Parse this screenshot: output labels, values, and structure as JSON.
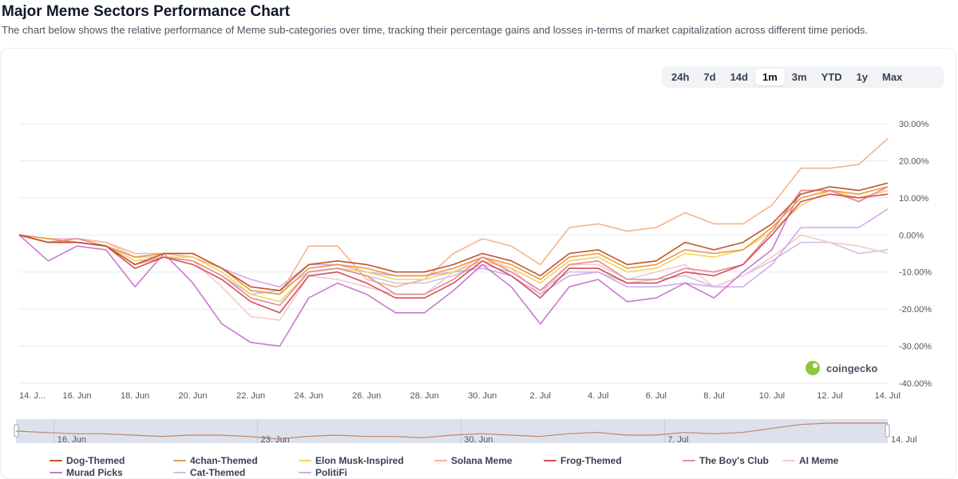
{
  "header": {
    "title": "Major Meme Sectors Performance Chart",
    "subtitle": "The chart below shows the relative performance of Meme sub-categories over time, tracking their percentage gains and losses in-terms of market capitalization across different time periods."
  },
  "range_selector": {
    "options": [
      "24h",
      "7d",
      "14d",
      "1m",
      "3m",
      "YTD",
      "1y",
      "Max"
    ],
    "selected": "1m"
  },
  "watermark": {
    "text": "coingecko",
    "icon": "coingecko-gecko-icon"
  },
  "colors": {
    "grid": "#e8eaef",
    "navigator_bg": "#dde1ec",
    "navigator_line": "#c2846a"
  },
  "chart_data": {
    "type": "line",
    "title": "Major Meme Sectors Performance Chart",
    "xlabel": "",
    "ylabel": "",
    "ylim": [
      -40,
      30
    ],
    "y_ticks": [
      "30.00%",
      "20.00%",
      "10.00%",
      "0.00%",
      "-10.00%",
      "-20.00%",
      "-30.00%",
      "-40.00%"
    ],
    "y_tick_values": [
      30,
      20,
      10,
      0,
      -10,
      -20,
      -30,
      -40
    ],
    "x_tick_labels": [
      "14. J...",
      "16. Jun",
      "18. Jun",
      "20. Jun",
      "22. Jun",
      "24. Jun",
      "26. Jun",
      "28. Jun",
      "30. Jun",
      "2. Jul",
      "4. Jul",
      "6. Jul",
      "8. Jul",
      "10. Jul",
      "12. Jul",
      "14. Jul"
    ],
    "x": [
      "14 Jun",
      "15 Jun",
      "16 Jun",
      "17 Jun",
      "18 Jun",
      "19 Jun",
      "20 Jun",
      "21 Jun",
      "22 Jun",
      "23 Jun",
      "24 Jun",
      "25 Jun",
      "26 Jun",
      "27 Jun",
      "28 Jun",
      "29 Jun",
      "30 Jun",
      "1 Jul",
      "2 Jul",
      "3 Jul",
      "4 Jul",
      "5 Jul",
      "6 Jul",
      "7 Jul",
      "8 Jul",
      "9 Jul",
      "10 Jul",
      "11 Jul",
      "12 Jul",
      "13 Jul",
      "14 Jul"
    ],
    "series": [
      {
        "name": "Dog-Themed",
        "color": "#c0542a",
        "values": [
          0,
          -2,
          -2,
          -3,
          -8,
          -5,
          -5,
          -9,
          -14,
          -15,
          -8,
          -7,
          -8,
          -10,
          -10,
          -8,
          -5,
          -7,
          -11,
          -5,
          -4,
          -8,
          -7,
          -2,
          -4,
          -2,
          3,
          11,
          13,
          12,
          14
        ]
      },
      {
        "name": "4chan-Themed",
        "color": "#e89a4a",
        "values": [
          0,
          -1,
          -2,
          -3,
          -6,
          -5,
          -5,
          -9,
          -15,
          -16,
          -9,
          -8,
          -9,
          -11,
          -11,
          -9,
          -6,
          -8,
          -12,
          -6,
          -5,
          -9,
          -8,
          -4,
          -5,
          -4,
          2,
          10,
          12,
          11,
          13
        ]
      },
      {
        "name": "Elon Musk-Inspired",
        "color": "#f2d55a",
        "values": [
          0,
          -1,
          -2,
          -3,
          -7,
          -6,
          -6,
          -10,
          -16,
          -18,
          -10,
          -9,
          -10,
          -12,
          -12,
          -10,
          -7,
          -9,
          -13,
          -7,
          -6,
          -10,
          -9,
          -5,
          -6,
          -4,
          1,
          8,
          12,
          10,
          12
        ]
      },
      {
        "name": "Solana Meme",
        "color": "#f7b48c",
        "values": [
          0,
          -2,
          -1,
          -2,
          -5,
          -5,
          -6,
          -9,
          -15,
          -16,
          -3,
          -3,
          -12,
          -14,
          -12,
          -5,
          -1,
          -3,
          -8,
          2,
          3,
          1,
          2,
          6,
          3,
          3,
          8,
          18,
          18,
          19,
          26
        ]
      },
      {
        "name": "Frog-Themed",
        "color": "#d94d56",
        "values": [
          0,
          -2,
          -2,
          -3,
          -9,
          -6,
          -8,
          -12,
          -18,
          -21,
          -11,
          -10,
          -13,
          -17,
          -17,
          -13,
          -7,
          -11,
          -17,
          -9,
          -9,
          -13,
          -13,
          -10,
          -11,
          -8,
          0,
          9,
          11,
          10,
          11
        ]
      },
      {
        "name": "The Boy's Club",
        "color": "#e58a9a",
        "values": [
          0,
          -2,
          -1,
          -3,
          -8,
          -6,
          -7,
          -11,
          -17,
          -19,
          -10,
          -9,
          -11,
          -16,
          -16,
          -12,
          -6,
          -10,
          -15,
          -8,
          -7,
          -12,
          -12,
          -9,
          -10,
          -8,
          1,
          12,
          12,
          9,
          13
        ]
      },
      {
        "name": "AI Meme",
        "color": "#f5c8cc",
        "values": [
          0,
          -1,
          -1,
          -2,
          -6,
          -6,
          -7,
          -14,
          -22,
          -23,
          -11,
          -12,
          -14,
          -16,
          -16,
          -10,
          -6,
          -9,
          -16,
          -8,
          -8,
          -12,
          -10,
          -8,
          -14,
          -11,
          -6,
          0,
          -2,
          -3,
          -5
        ]
      },
      {
        "name": "Murad Picks",
        "color": "#c879cf",
        "values": [
          0,
          -7,
          -3,
          -4,
          -14,
          -5,
          -13,
          -24,
          -29,
          -30,
          -17,
          -13,
          -16,
          -21,
          -21,
          -15,
          -8,
          -14,
          -24,
          -14,
          -12,
          -18,
          -17,
          -13,
          -17,
          -10,
          -4,
          12,
          12,
          9,
          13
        ]
      },
      {
        "name": "Cat-Themed",
        "color": "#c9c3e3",
        "values": [
          0,
          -2,
          -2,
          -3,
          -6,
          -6,
          -7,
          -11,
          -16,
          -15,
          -10,
          -9,
          -11,
          -13,
          -13,
          -11,
          -8,
          -10,
          -15,
          -10,
          -10,
          -13,
          -12,
          -11,
          -14,
          -11,
          -7,
          -2,
          -2,
          -5,
          -4
        ]
      },
      {
        "name": "PolitiFi",
        "color": "#d3a8ea",
        "values": [
          0,
          -2,
          -2,
          -3,
          -6,
          -5,
          -6,
          -9,
          -12,
          -14,
          -8,
          -8,
          -10,
          -11,
          -11,
          -10,
          -9,
          -11,
          -16,
          -11,
          -10,
          -14,
          -14,
          -13,
          -14,
          -14,
          -8,
          2,
          2,
          2,
          7
        ]
      }
    ],
    "navigator": {
      "tick_labels": [
        "16. Jun",
        "23. Jun",
        "30. Jun",
        "7. Jul",
        "14. Jul"
      ],
      "values": [
        3,
        2,
        1,
        1,
        0,
        -1,
        0,
        0,
        -1,
        -3,
        -1,
        0,
        -1,
        -1,
        -2,
        0,
        1,
        0,
        -1,
        1,
        2,
        0,
        0,
        2,
        1,
        2,
        5,
        8,
        9,
        9,
        9
      ]
    }
  }
}
